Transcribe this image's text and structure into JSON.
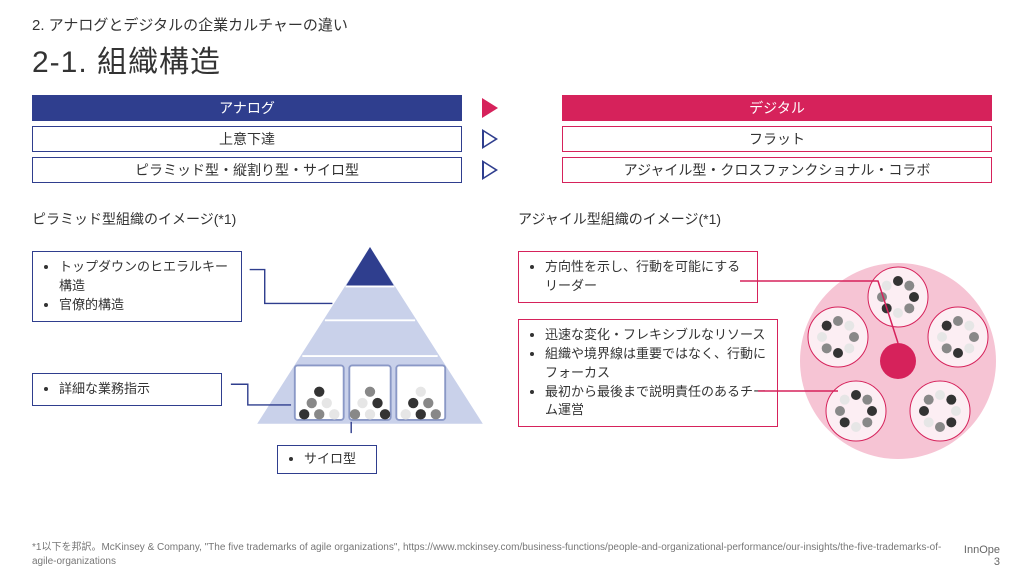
{
  "colors": {
    "analog": "#2f3e8e",
    "analog_light": "#c9d1ea",
    "analog_mid": "#8a98c6",
    "digital": "#d6225b",
    "digital_light": "#f6c4d4",
    "digital_bg": "#fceef3",
    "text": "#333333",
    "gray_dot_dark": "#333333",
    "gray_dot_mid": "#888888",
    "gray_dot_light": "#e6e6e6"
  },
  "header": {
    "section": "2. アナログとデジタルの企業カルチャーの違い",
    "title": "2-1. 組織構造"
  },
  "comparison": {
    "left_header": "アナログ",
    "right_header": "デジタル",
    "rows": [
      {
        "left": "上意下達",
        "right": "フラット"
      },
      {
        "left": "ピラミッド型・縦割り型・サイロ型",
        "right": "アジャイル型・クロスファンクショナル・コラボ"
      }
    ]
  },
  "pyramid": {
    "title": "ピラミッド型組織のイメージ(*1)",
    "callout1_items": [
      "トップダウンのヒエラルキー構造",
      "官僚的構造"
    ],
    "callout2_items": [
      "詳細な業務指示"
    ],
    "silo_label": "サイロ型"
  },
  "agile": {
    "title": "アジャイル型組織のイメージ(*1)",
    "callout1_items": [
      "方向性を示し、行動を可能にするリーダー"
    ],
    "callout2_items": [
      "迅速な変化・フレキシブルなリソース",
      "組織や境界線は重要ではなく、行動にフォーカス",
      "最初から最後まで説明責任のあるチーム運営"
    ]
  },
  "footnote": "*1以下を邦訳。McKinsey & Company, \"The five trademarks of agile organizations\", https://www.mckinsey.com/business-functions/people-and-organizational-performance/our-insights/the-five-trademarks-of-agile-organizations",
  "footer": {
    "brand": "InnOpe",
    "page": "3"
  }
}
